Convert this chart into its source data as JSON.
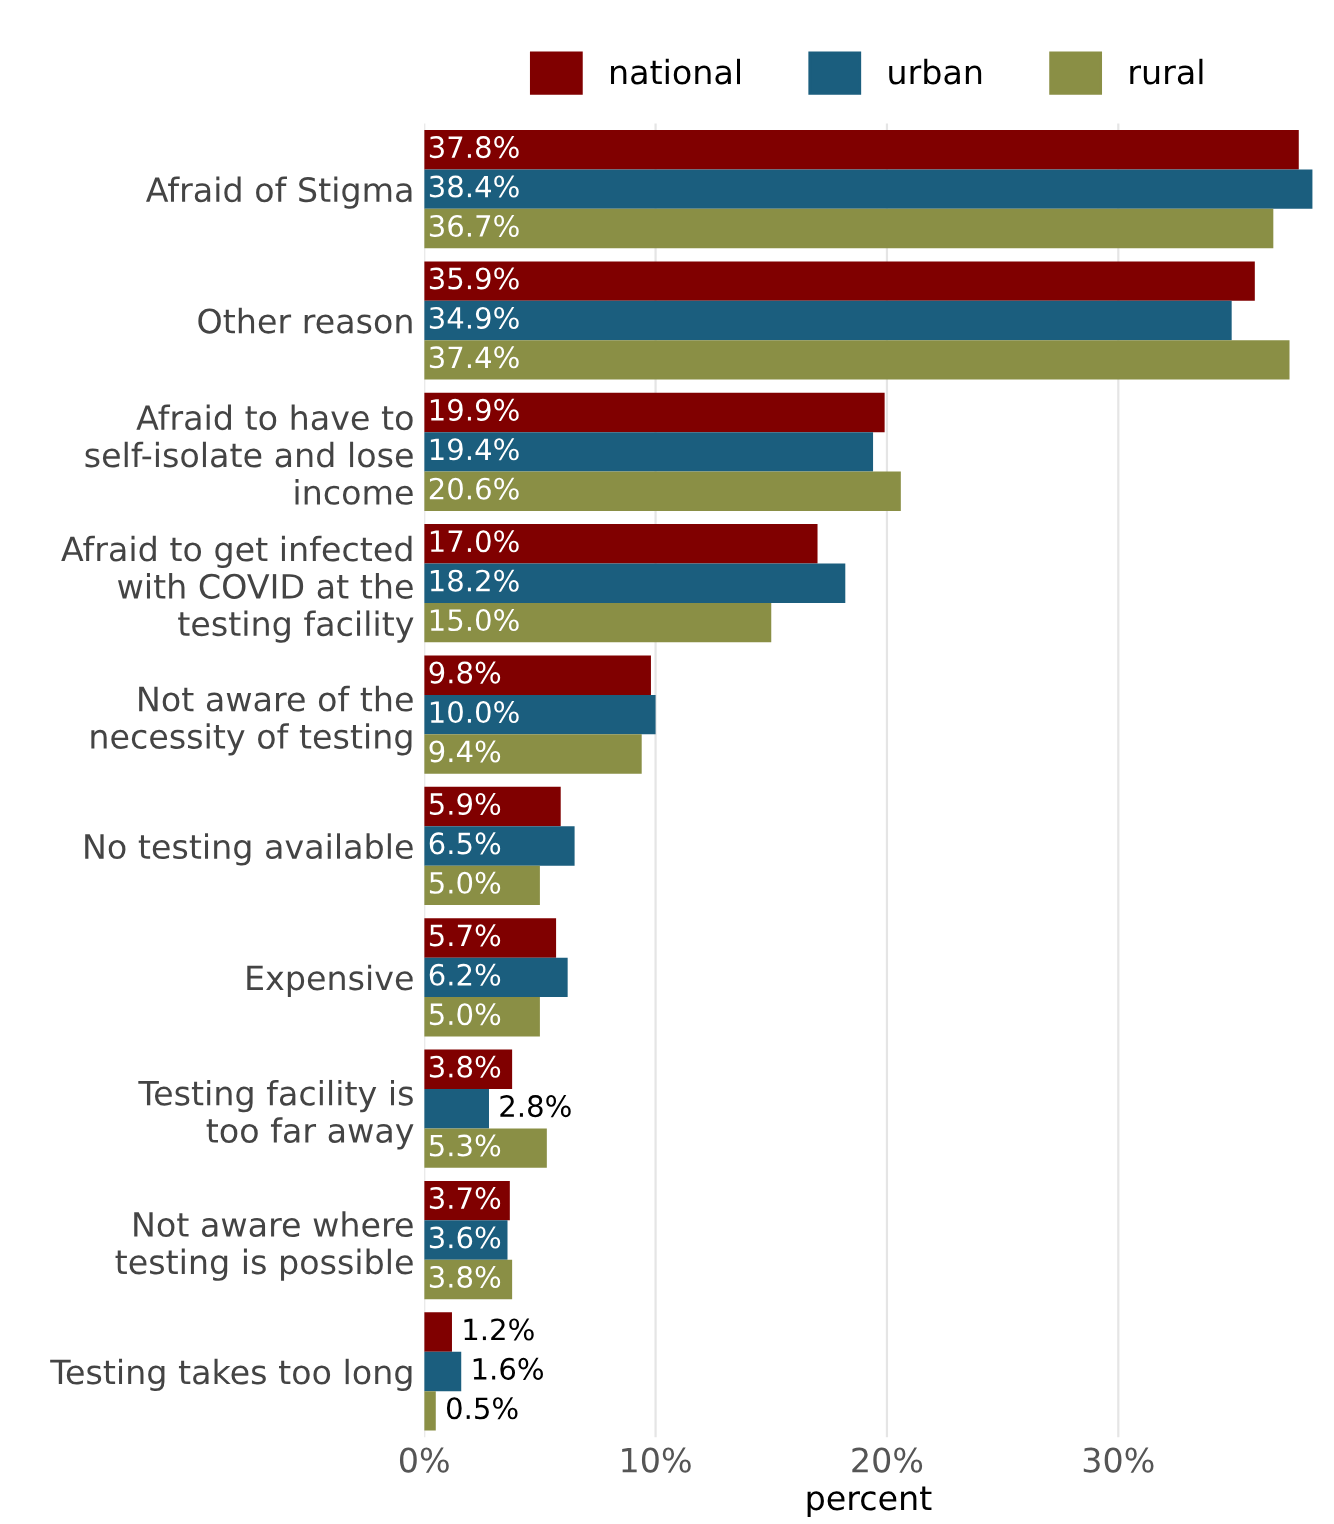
{
  "chart_data": {
    "type": "bar",
    "orientation": "horizontal",
    "xlabel": "percent",
    "categories": [
      "Afraid of Stigma",
      "Other reason",
      "Afraid to have to\nself-isolate and lose\nincome",
      "Afraid to get infected\nwith COVID at the\ntesting facility",
      "Not aware of the\nnecessity of testing",
      "No testing available",
      "Expensive",
      "Testing facility is\ntoo far away",
      "Not aware where\ntesting is possible",
      "Testing takes too long"
    ],
    "series": [
      {
        "name": "national",
        "color": "#800000",
        "values": [
          37.8,
          35.9,
          19.9,
          17.0,
          9.8,
          5.9,
          5.7,
          3.8,
          3.7,
          1.2
        ],
        "value_labels": [
          "37.8%",
          "35.9%",
          "19.9%",
          "17.0%",
          "9.8%",
          "5.9%",
          "5.7%",
          "3.8%",
          "3.7%",
          "1.2%"
        ]
      },
      {
        "name": "urban",
        "color": "#1b5e7e",
        "values": [
          38.4,
          34.9,
          19.4,
          18.2,
          10.0,
          6.5,
          6.2,
          2.8,
          3.6,
          1.6
        ],
        "value_labels": [
          "38.4%",
          "34.9%",
          "19.4%",
          "18.2%",
          "10.0%",
          "6.5%",
          "6.2%",
          "2.8%",
          "3.6%",
          "1.6%"
        ]
      },
      {
        "name": "rural",
        "color": "#8a8f45",
        "values": [
          36.7,
          37.4,
          20.6,
          15.0,
          9.4,
          5.0,
          5.0,
          5.3,
          3.8,
          0.5
        ],
        "value_labels": [
          "36.7%",
          "37.4%",
          "20.6%",
          "15.0%",
          "9.4%",
          "5.0%",
          "5.0%",
          "5.3%",
          "3.8%",
          "0.5%"
        ]
      }
    ],
    "xlim": [
      0,
      38.4
    ],
    "xticks": [
      {
        "value": 0,
        "label": "0%"
      },
      {
        "value": 10,
        "label": "10%"
      },
      {
        "value": 20,
        "label": "20%"
      },
      {
        "value": 30,
        "label": "30%"
      }
    ],
    "grid": "x",
    "legend": "top"
  }
}
